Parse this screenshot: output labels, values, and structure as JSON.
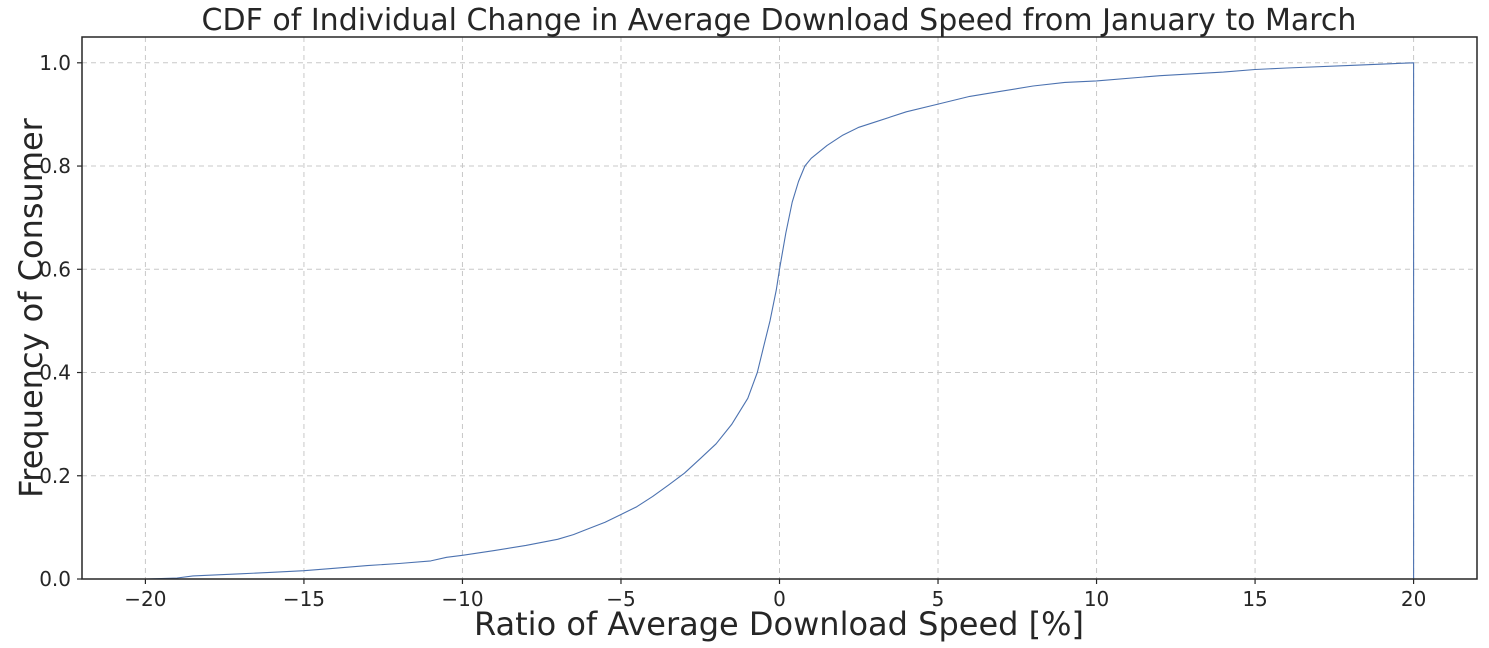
{
  "chart_data": {
    "type": "line",
    "title": "CDF of Individual Change in Average Download Speed from January to March",
    "xlabel": "Ratio of Average Download Speed [%]",
    "ylabel": "Frequency of Consumer",
    "xlim": [
      -22,
      22
    ],
    "ylim": [
      0,
      1.05
    ],
    "xticks": [
      -20,
      -15,
      -10,
      -5,
      0,
      5,
      10,
      15,
      20
    ],
    "xtick_labels": [
      "−20",
      "−15",
      "−10",
      "−5",
      "0",
      "5",
      "10",
      "15",
      "20"
    ],
    "yticks": [
      0,
      0.2,
      0.4,
      0.6,
      0.8,
      1.0
    ],
    "ytick_labels": [
      "0.0",
      "0.2",
      "0.4",
      "0.6",
      "0.8",
      "1.0"
    ],
    "grid": true,
    "line_color": "#4c72b0",
    "series": [
      {
        "x": [
          -20,
          -19,
          -18.5,
          -17,
          -16,
          -15,
          -14,
          -13,
          -12,
          -11,
          -10.5,
          -10,
          -9,
          -8,
          -7,
          -6.5,
          -6,
          -5.5,
          -5,
          -4.5,
          -4,
          -3.5,
          -3,
          -2.5,
          -2,
          -1.5,
          -1,
          -0.7,
          -0.5,
          -0.3,
          -0.1,
          0,
          0.2,
          0.4,
          0.6,
          0.8,
          1,
          1.5,
          2,
          2.5,
          3,
          4,
          5,
          6,
          7,
          8,
          9,
          10,
          12,
          14,
          15,
          16,
          18,
          20,
          20
        ],
        "y": [
          0,
          0.002,
          0.006,
          0.01,
          0.013,
          0.016,
          0.021,
          0.026,
          0.03,
          0.035,
          0.042,
          0.046,
          0.055,
          0.065,
          0.077,
          0.086,
          0.098,
          0.11,
          0.125,
          0.14,
          0.16,
          0.182,
          0.205,
          0.233,
          0.262,
          0.3,
          0.35,
          0.4,
          0.45,
          0.5,
          0.56,
          0.6,
          0.67,
          0.73,
          0.77,
          0.8,
          0.815,
          0.84,
          0.86,
          0.875,
          0.885,
          0.905,
          0.92,
          0.935,
          0.945,
          0.955,
          0.962,
          0.965,
          0.975,
          0.982,
          0.987,
          0.99,
          0.995,
          1.0,
          0
        ]
      }
    ]
  }
}
